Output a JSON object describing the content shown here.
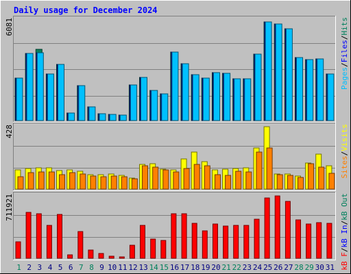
{
  "chart_data": {
    "type": "bar",
    "title": "Daily usage for December 2024",
    "categories": [
      "1",
      "2",
      "3",
      "4",
      "5",
      "6",
      "7",
      "8",
      "9",
      "10",
      "11",
      "12",
      "13",
      "14",
      "15",
      "16",
      "17",
      "18",
      "19",
      "20",
      "21",
      "22",
      "23",
      "24",
      "25",
      "26",
      "27",
      "28",
      "29",
      "30",
      "31"
    ],
    "weekend_days": [
      "1",
      "7",
      "8",
      "14",
      "15",
      "21",
      "22",
      "28",
      "29"
    ],
    "panels": [
      {
        "id": "hits",
        "max_label": "6081",
        "ymax": 6081,
        "legend": [
          "Pages",
          "Files",
          "Hits"
        ],
        "series": [
          {
            "name": "Hits",
            "color": "#00805c",
            "values": [
              2550,
              4040,
              4260,
              2800,
              3380,
              470,
              2100,
              820,
              430,
              390,
              330,
              2120,
              2590,
              1810,
              1600,
              4100,
              3400,
              2750,
              2550,
              2890,
              2850,
              2500,
              2500,
              3970,
              5920,
              5800,
              5500,
              3780,
              3650,
              3680,
              2780
            ]
          },
          {
            "name": "Files",
            "color": "#0000ff",
            "values": [
              2550,
              4040,
              4050,
              2800,
              3380,
              470,
              2100,
              820,
              430,
              390,
              330,
              2120,
              2590,
              1810,
              1600,
              4100,
              3400,
              2750,
              2550,
              2890,
              2850,
              2500,
              2500,
              3970,
              5920,
              5800,
              5500,
              3780,
              3650,
              3680,
              2780
            ]
          },
          {
            "name": "Pages",
            "color": "#00c0ff",
            "values": [
              2550,
              4040,
              4050,
              2800,
              3380,
              470,
              2100,
              820,
              430,
              390,
              330,
              2120,
              2590,
              1810,
              1600,
              4100,
              3400,
              2750,
              2550,
              2890,
              2850,
              2500,
              2500,
              3970,
              5920,
              5800,
              5500,
              3780,
              3650,
              3680,
              2780
            ]
          }
        ]
      },
      {
        "id": "visits",
        "max_label": "428",
        "ymax": 428,
        "legend": [
          "Sites",
          "Visits"
        ],
        "series": [
          {
            "name": "Visits",
            "color": "#ffff00",
            "values": [
              128,
              139,
              144,
              145,
              126,
              130,
              119,
              99,
              98,
              104,
              91,
              75,
              166,
              173,
              135,
              128,
              207,
              252,
              184,
              131,
              136,
              141,
              145,
              280,
              425,
              101,
              103,
              89,
              179,
              237,
              157
            ]
          },
          {
            "name": "Sites",
            "color": "#ff8000",
            "values": [
              82,
              112,
              117,
              115,
              96,
              111,
              102,
              90,
              85,
              88,
              82,
              69,
              158,
              151,
              128,
              118,
              138,
              168,
              159,
              100,
              93,
              123,
              116,
              253,
              280,
              100,
              92,
              79,
              172,
              151,
              109
            ]
          }
        ]
      },
      {
        "id": "kbytes",
        "max_label": "711921",
        "ymax": 711921,
        "legend": [
          "kB F",
          "kB In",
          "kB Out"
        ],
        "series": [
          {
            "name": "kB F",
            "color": "#ff0000",
            "values": [
              186000,
              515000,
              500000,
              372000,
              499000,
              37000,
              302000,
              95000,
              52000,
              23000,
              17000,
              148000,
              369000,
              218000,
              204000,
              502000,
              502000,
              394000,
              311000,
              385000,
              364000,
              372000,
              375000,
              442000,
              679000,
              704000,
              639000,
              430000,
              390000,
              402000,
              395000
            ]
          }
        ]
      }
    ]
  }
}
